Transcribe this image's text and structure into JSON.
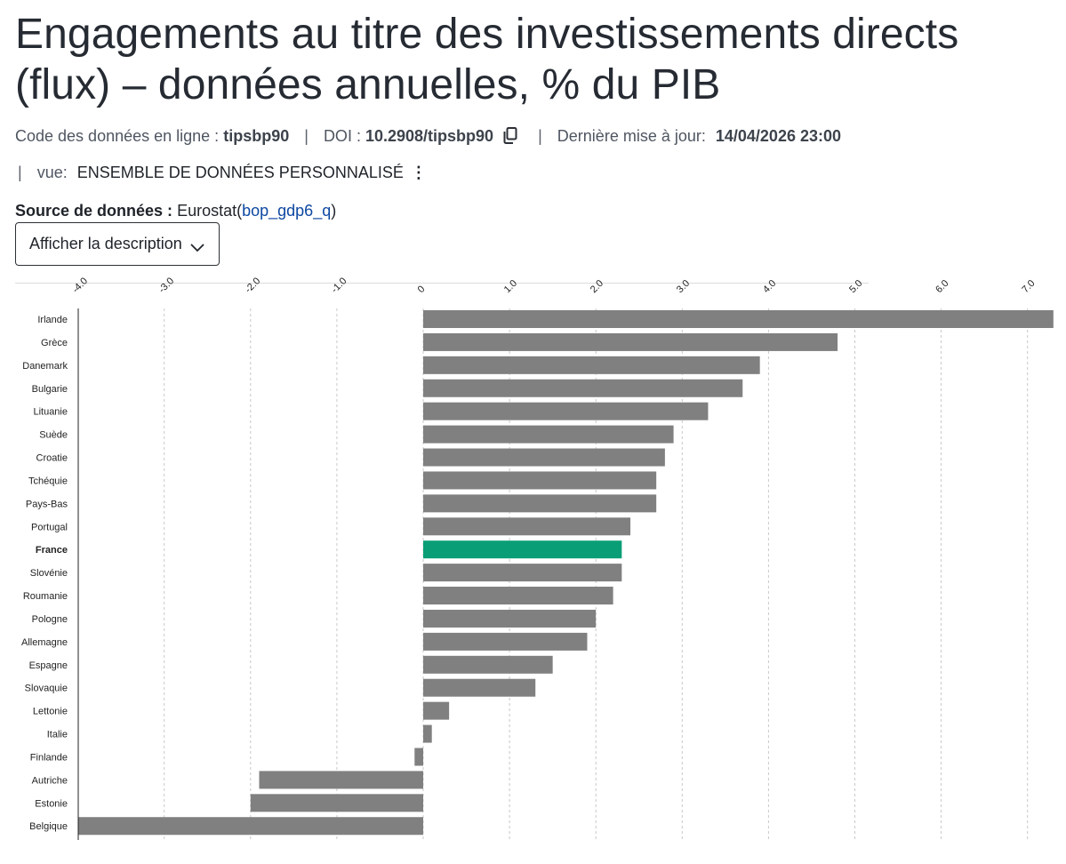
{
  "page": {
    "title": "Engagements au titre des investissements directs (flux) – données annuelles, % du PIB",
    "code_label": "Code des données en ligne :",
    "code_value": "tipsbp90",
    "doi_label": "DOI :",
    "doi_value": "10.2908/tipsbp90",
    "updated_label": "Dernière mise à jour:",
    "updated_value": "14/04/2026 23:00",
    "separator": "|",
    "view_label": "vue:",
    "view_value": "ENSEMBLE DE DONNÉES PERSONNALISÉ",
    "source_label": "Source de données :",
    "source_name": "Eurostat",
    "source_paren_open": "(",
    "source_code": "bop_gdp6_q",
    "source_paren_close": ")",
    "description_button": "Afficher la description",
    "icons": {
      "copy": "copy-icon",
      "kebab": "kebab-menu-icon",
      "chevron": "chevron-down-icon"
    }
  },
  "chart_data": {
    "type": "bar",
    "orientation": "horizontal",
    "categories": [
      "Irlande",
      "Grèce",
      "Danemark",
      "Bulgarie",
      "Lituanie",
      "Suède",
      "Croatie",
      "Tchéquie",
      "Pays-Bas",
      "Portugal",
      "France",
      "Slovénie",
      "Roumanie",
      "Pologne",
      "Allemagne",
      "Espagne",
      "Slovaquie",
      "Lettonie",
      "Italie",
      "Finlande",
      "Autriche",
      "Estonie",
      "Belgique"
    ],
    "values": [
      7.3,
      4.8,
      3.9,
      3.7,
      3.3,
      2.9,
      2.8,
      2.7,
      2.7,
      2.4,
      2.3,
      2.3,
      2.2,
      2.0,
      1.9,
      1.5,
      1.3,
      0.3,
      0.1,
      -0.1,
      -1.9,
      -2.0,
      -4.0
    ],
    "highlight": "France",
    "xlim": [
      -4.0,
      7.3
    ],
    "xticks": [
      -4.0,
      -3.0,
      -2.0,
      -1.0,
      0,
      1.0,
      2.0,
      3.0,
      4.0,
      5.0,
      6.0,
      7.0
    ],
    "xtick_labels": [
      "-4.0",
      "-3.0",
      "-2.0",
      "-1.0",
      "0",
      "1.0",
      "2.0",
      "3.0",
      "4.0",
      "5.0",
      "6.0",
      "7.0"
    ],
    "axis_position": "top",
    "grid": "vertical dashed",
    "colors": {
      "bar": "#808080",
      "highlight": "#0a9e76",
      "grid": "#c8c8c8",
      "axis": "#222222"
    }
  }
}
